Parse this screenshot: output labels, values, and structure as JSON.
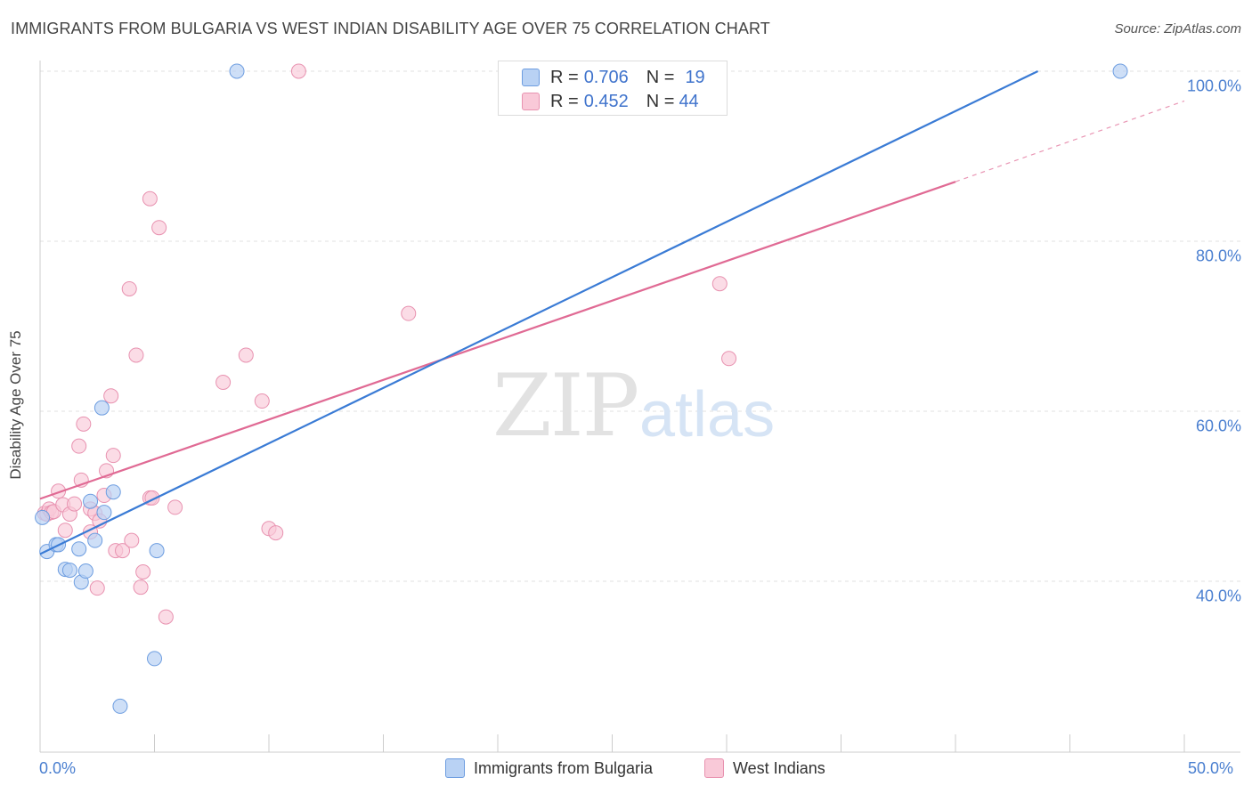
{
  "title": "IMMIGRANTS FROM BULGARIA VS WEST INDIAN DISABILITY AGE OVER 75 CORRELATION CHART",
  "source": "Source: ZipAtlas.com",
  "watermark": {
    "zip": "ZIP",
    "atlas": "atlas"
  },
  "legend": {
    "blue": {
      "r_label": "R = ",
      "r_value": "0.706",
      "n_label": "N = ",
      "n_value": "19"
    },
    "pink": {
      "r_label": "R = ",
      "r_value": "0.452",
      "n_label": "N = ",
      "n_value": "44"
    }
  },
  "colors": {
    "blue_fill": "#b9d2f4",
    "blue_stroke": "#6d9de0",
    "blue_line": "#3a7bd5",
    "pink_fill": "#f9c9d8",
    "pink_stroke": "#e892b0",
    "pink_line": "#e06a94",
    "tick_text": "#4a7fd0",
    "grid": "#e0e0e0"
  },
  "chart_data": {
    "type": "scatter",
    "title": "IMMIGRANTS FROM BULGARIA VS WEST INDIAN DISABILITY AGE OVER 75 CORRELATION CHART",
    "xlabel": "",
    "ylabel": "Disability Age Over 75",
    "xlim": [
      0,
      50
    ],
    "ylim": [
      20,
      102
    ],
    "x_tick_labels": [
      "0.0%",
      "50.0%"
    ],
    "y_ticks": [
      40,
      60,
      80,
      100
    ],
    "y_tick_labels": [
      "40.0%",
      "60.0%",
      "80.0%",
      "100.0%"
    ],
    "grid": true,
    "legend_position": "bottom-center",
    "series": [
      {
        "name": "Immigrants from Bulgaria",
        "color": "blue",
        "R": 0.706,
        "N": 19,
        "points": [
          [
            0.3,
            43.5
          ],
          [
            0.7,
            44.3
          ],
          [
            0.8,
            44.3
          ],
          [
            1.1,
            41.4
          ],
          [
            1.3,
            41.3
          ],
          [
            1.7,
            43.8
          ],
          [
            1.8,
            39.9
          ],
          [
            2.0,
            41.2
          ],
          [
            2.2,
            49.4
          ],
          [
            2.4,
            44.8
          ],
          [
            2.8,
            48.1
          ],
          [
            2.7,
            60.4
          ],
          [
            3.2,
            50.5
          ],
          [
            3.5,
            25.3
          ],
          [
            5.1,
            43.6
          ],
          [
            5.0,
            30.9
          ],
          [
            8.6,
            100.0
          ],
          [
            47.2,
            100.0
          ],
          [
            0.1,
            47.5
          ]
        ],
        "trendline": {
          "x": [
            0,
            43.6
          ],
          "y": [
            43.2,
            100.0
          ],
          "dashed_extension": false
        }
      },
      {
        "name": "West Indians",
        "color": "pink",
        "R": 0.452,
        "N": 44,
        "points": [
          [
            0.2,
            48.0
          ],
          [
            0.3,
            47.9
          ],
          [
            0.4,
            48.5
          ],
          [
            0.5,
            48.1
          ],
          [
            0.6,
            48.2
          ],
          [
            0.8,
            50.6
          ],
          [
            1.0,
            49.0
          ],
          [
            1.1,
            46.0
          ],
          [
            1.3,
            47.9
          ],
          [
            1.5,
            49.1
          ],
          [
            1.7,
            55.9
          ],
          [
            1.8,
            51.9
          ],
          [
            1.9,
            58.5
          ],
          [
            2.2,
            48.5
          ],
          [
            2.2,
            45.8
          ],
          [
            2.4,
            48.0
          ],
          [
            2.5,
            39.2
          ],
          [
            2.6,
            47.1
          ],
          [
            2.8,
            50.1
          ],
          [
            2.9,
            53.0
          ],
          [
            3.1,
            61.8
          ],
          [
            3.2,
            54.8
          ],
          [
            3.3,
            43.6
          ],
          [
            3.6,
            43.6
          ],
          [
            3.9,
            74.4
          ],
          [
            4.0,
            44.8
          ],
          [
            4.2,
            66.6
          ],
          [
            4.4,
            39.3
          ],
          [
            4.5,
            41.1
          ],
          [
            4.8,
            49.8
          ],
          [
            4.9,
            49.8
          ],
          [
            4.8,
            85.0
          ],
          [
            5.2,
            81.6
          ],
          [
            5.5,
            35.8
          ],
          [
            5.9,
            48.7
          ],
          [
            8.0,
            63.4
          ],
          [
            9.0,
            66.6
          ],
          [
            9.7,
            61.2
          ],
          [
            10.0,
            46.2
          ],
          [
            10.3,
            45.7
          ],
          [
            11.3,
            100.0
          ],
          [
            16.1,
            71.5
          ],
          [
            29.7,
            75.0
          ],
          [
            30.1,
            66.2
          ]
        ],
        "trendline": {
          "x": [
            0,
            40
          ],
          "y": [
            49.7,
            87.0
          ],
          "dashed_extension": {
            "x": [
              40,
              50
            ],
            "y": [
              87.0,
              96.5
            ]
          }
        }
      }
    ]
  },
  "bottom_legend": [
    "Immigrants from Bulgaria",
    "West Indians"
  ]
}
